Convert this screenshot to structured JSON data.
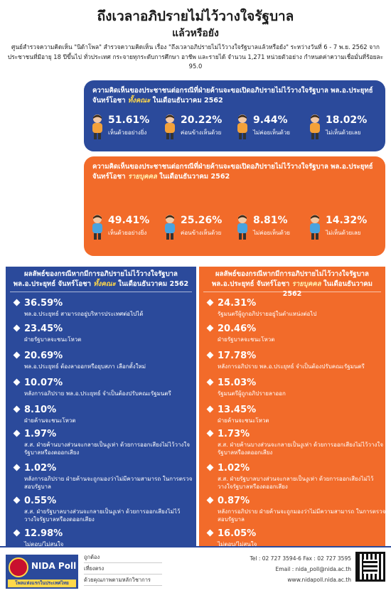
{
  "header": {
    "title": "ถึงเวลาอภิปรายไม่ไว้วางใจรัฐบาล",
    "subtitle": "แล้วหรือยัง",
    "method": "ศูนย์สำรวจความคิดเห็น \"นิด้าโพล\" สำรวจความคิดเห็น เรื่อง \"ถึงเวลาอภิปรายไม่ไว้วางใจรัฐบาลแล้วหรือยัง\" ระหว่างวันที่ 6 - 7 พ.ย. 2562 จากประชาชนที่มีอายุ 18 ปีขึ้นไป ทั่วประเทศ กระจายทุกระดับการศึกษา อาชีพ และรายได้ จำนวน 1,271 หน่วยตัวอย่าง กำหนดค่าความเชื่อมั่นที่ร้อยละ 95.0"
  },
  "chart_data": [
    {
      "type": "bar",
      "title_prefix": "ความคิดเห็นของประชาชนต่อกรณีที่ฝ่ายค้านจะขอเปิดอภิปรายไม่ไว้วางใจรัฐบาล พล.อ.ประยุทธ์ จันทร์โอชา ",
      "title_em": "ทั้งคณะ",
      "title_suffix": " ในเดือนธันวาคม 2562",
      "categories": [
        "เห็นด้วยอย่างยิ่ง",
        "ค่อนข้างเห็นด้วย",
        "ไม่ค่อยเห็นด้วย",
        "ไม่เห็นด้วยเลย"
      ],
      "values": [
        51.61,
        20.22,
        9.44,
        18.02
      ],
      "value_labels": [
        "51.61%",
        "20.22%",
        "9.44%",
        "18.02%"
      ]
    },
    {
      "type": "bar",
      "title_prefix": "ความคิดเห็นของประชาชนต่อกรณีที่ฝ่ายค้านจะขอเปิดอภิปรายไม่ไว้วางใจรัฐบาล พล.อ.ประยุทธ์ จันทร์โอชา ",
      "title_em": "รายบุคคล",
      "title_suffix": " ในเดือนธันวาคม 2562",
      "categories": [
        "เห็นด้วยอย่างยิ่ง",
        "ค่อนข้างเห็นด้วย",
        "ไม่ค่อยเห็นด้วย",
        "ไม่เห็นด้วยเลย"
      ],
      "values": [
        49.41,
        25.26,
        8.81,
        14.32
      ],
      "value_labels": [
        "49.41%",
        "25.26%",
        "8.81%",
        "14.32%"
      ]
    },
    {
      "type": "table",
      "title_prefix": "ผลลัพธ์ของกรณีหากมีการอภิปรายไม่ไว้วางใจรัฐบาล พล.อ.ประยุทธ์ จันทร์โอชา ",
      "title_em": "ทั้งคณะ",
      "title_suffix": " ในเดือนธันวาคม 2562",
      "items": [
        {
          "pct": "36.59%",
          "label": "พล.อ.ประยุทธ์ สามารถอยู่บริหารประเทศต่อไปได้"
        },
        {
          "pct": "23.45%",
          "label": "ฝ่ายรัฐบาลจะชนะโหวต"
        },
        {
          "pct": "20.69%",
          "label": "พล.อ.ประยุทธ์ ต้องลาออกหรือยุบสภา เลือกตั้งใหม่"
        },
        {
          "pct": "10.07%",
          "label": "หลังการอภิปราย พล.อ.ประยุทธ์ จำเป็นต้องปรับคณะรัฐมนตรี"
        },
        {
          "pct": "8.10%",
          "label": "ฝ่ายค้านจะชนะโหวต"
        },
        {
          "pct": "1.97%",
          "label": "ส.ส. ฝ่ายค้านบางส่วนจะกลายเป็นงูเห่า ด้วยการออกเสียงไม่ไว้วางใจรัฐบาลหรืองดออกเสียง"
        },
        {
          "pct": "1.02%",
          "label": "หลังการอภิปราย ฝ่ายค้านจะถูกมองว่าไม่มีความสามารถ ในการตรวจสอบรัฐบาล"
        },
        {
          "pct": "0.55%",
          "label": "ส.ส. ฝ่ายรัฐบาลบางส่วนจะกลายเป็นงูเห่า ด้วยการออกเสียงไม่ไว้วางใจรัฐบาลหรืองดออกเสียง"
        },
        {
          "pct": "12.98%",
          "label": "ไม่ตอบ/ไม่สนใจ"
        }
      ]
    },
    {
      "type": "table",
      "title_prefix": "ผลลัพธ์ของกรณีหากมีการอภิปรายไม่ไว้วางใจรัฐบาล พล.อ.ประยุทธ์ จันทร์โอชา ",
      "title_em": "รายบุคคล",
      "title_suffix": " ในเดือนธันวาคม 2562",
      "items": [
        {
          "pct": "24.31%",
          "label": "รัฐมนตรีผู้ถูกอภิปรายอยู่ในตำแหน่งต่อไป"
        },
        {
          "pct": "20.46%",
          "label": "ฝ่ายรัฐบาลจะชนะโหวต"
        },
        {
          "pct": "17.78%",
          "label": "หลังการอภิปราย พล.อ.ประยุทธ์ จำเป็นต้องปรับคณะรัฐมนตรี"
        },
        {
          "pct": "15.03%",
          "label": "รัฐมนตรีผู้ถูกอภิปรายลาออก"
        },
        {
          "pct": "13.45%",
          "label": "ฝ่ายค้านจะชนะโหวต"
        },
        {
          "pct": "1.73%",
          "label": "ส.ส. ฝ่ายค้านบางส่วนจะกลายเป็นงูเห่า ด้วยการออกเสียงไม่ไว้วางใจรัฐบาลหรืองดออกเสียง"
        },
        {
          "pct": "1.02%",
          "label": "ส.ส. ฝ่ายรัฐบาลบางส่วนจะกลายเป็นงูเห่า ด้วยการออกเสียงไม่ไว้วางใจรัฐบาลหรืองดออกเสียง"
        },
        {
          "pct": "0.87%",
          "label": "หลังการอภิปราย ฝ่ายค้านจะถูกมองว่าไม่มีความสามารถ ในการตรวจสอบรัฐบาล"
        },
        {
          "pct": "16.05%",
          "label": "ไม่ตอบ/ไม่สนใจ"
        }
      ]
    }
  ],
  "footer": {
    "logo_text": "NIDA Poll",
    "logo_tagline": "โพลแห่งแรกในประเทศไทย",
    "nav": [
      "ถูกต้อง",
      "เที่ยงตรง",
      "ด้วยคุณภาพตามหลักวิชาการ"
    ],
    "contact": [
      "Tel : 02 727 3594-6  Fax : 02 727 3595",
      "Email : nida_poll@nida.ac.th",
      "www.nidapoll.nida.ac.th"
    ]
  },
  "colors": {
    "blue": "#2b4a9b",
    "orange": "#f26b2a",
    "highlight": "#ffd84a"
  }
}
